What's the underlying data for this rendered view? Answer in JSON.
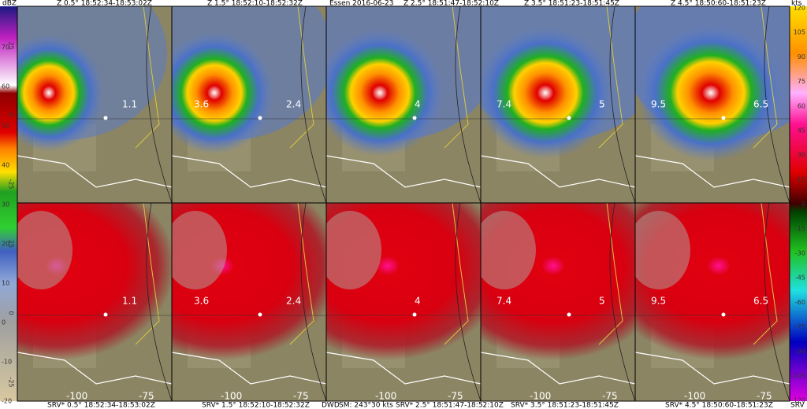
{
  "header": {
    "left_unit": "dBZ",
    "site": "Essen 2016-06-23",
    "right_unit": "kts"
  },
  "footer": {
    "source": "DWD",
    "storm_motion": "SM: 243°30 kts",
    "right_unit": "SRV"
  },
  "left_scale": {
    "ticks": [
      70,
      60,
      50,
      40,
      30,
      20,
      10,
      0,
      -10,
      -20
    ],
    "rotated_ticks": [
      "25",
      "0",
      "-25",
      "25",
      "0",
      "-25"
    ]
  },
  "right_scale": {
    "ticks": [
      120,
      105,
      90,
      75,
      60,
      45,
      30,
      15,
      0,
      -15,
      -30,
      -45,
      -60,
      -75,
      -90,
      -105,
      -120
    ]
  },
  "reflectivity_panels": [
    {
      "title": "Z 0.5° 18:52:34-18:53:02Z",
      "labels": [
        "1.1"
      ]
    },
    {
      "title": "Z 1.5° 18:52:10-18:52:32Z",
      "labels": [
        "3.6",
        "2.4"
      ]
    },
    {
      "title": "Z 2.5° 18:51:47-18:52:10Z",
      "labels": [
        "4"
      ]
    },
    {
      "title": "Z 3.5° 18:51:23-18:51:45Z",
      "labels": [
        "7.4",
        "5"
      ]
    },
    {
      "title": "Z 4.5° 18:50:60-18:51:23Z",
      "labels": [
        "9.5",
        "6.5"
      ]
    }
  ],
  "velocity_panels": [
    {
      "title": "SRV* 0.5° 18:52:34-18:53:02Z",
      "labels": [
        "1.1"
      ],
      "range_labels": [
        "-100",
        "-75"
      ]
    },
    {
      "title": "SRV* 1.5° 18:52:10-18:52:32Z",
      "labels": [
        "3.6",
        "2.4"
      ],
      "range_labels": [
        "-100",
        "-75"
      ]
    },
    {
      "title": "SRV* 2.5° 18:51:47-18:52:10Z",
      "labels": [
        "4"
      ],
      "range_labels": [
        "-100",
        "-75"
      ]
    },
    {
      "title": "SRV* 3.5° 18:51:23-18:51:45Z",
      "labels": [
        "7.4",
        "5"
      ],
      "range_labels": [
        "-100",
        "-75"
      ]
    },
    {
      "title": "SRV* 4.5° 18:50:60-18:51:23Z",
      "labels": [
        "9.5",
        "6.5"
      ],
      "range_labels": [
        "-100",
        "-75"
      ]
    }
  ]
}
